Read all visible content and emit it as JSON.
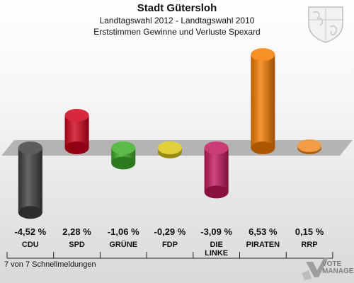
{
  "header": {
    "title": "Stadt Gütersloh",
    "subtitle": "Landtagswahl 2012 - Landtagswahl 2010",
    "description": "Erststimmen Gewinne und Verluste Spexard"
  },
  "footer": {
    "reports": "7 von 7 Schnellmeldungen",
    "logo_line1": "VOTE",
    "logo_line2": "MANAGER"
  },
  "chart_data": {
    "type": "bar",
    "title": "Stadt Gütersloh",
    "subtitle": "Landtagswahl 2012 - Landtagswahl 2010 / Erststimmen Gewinne und Verluste Spexard",
    "xlabel": "",
    "ylabel": "",
    "ylim": [
      -6,
      9
    ],
    "grid": false,
    "legend": "none",
    "categories": [
      "CDU",
      "SPD",
      "GRÜNE",
      "FDP",
      "DIE LINKE",
      "PIRATEN",
      "RRP"
    ],
    "values": [
      -4.52,
      2.28,
      -1.06,
      -0.29,
      -3.09,
      6.53,
      0.15
    ],
    "value_labels": [
      "-4,52 %",
      "2,28 %",
      "-1,06 %",
      "-0,29 %",
      "-3,09 %",
      "6,53 %",
      "0,15 %"
    ],
    "colors": [
      "#404040",
      "#d0021b",
      "#3fae29",
      "#dcc817",
      "#c2185b",
      "#f57c00",
      "#f08a24"
    ]
  }
}
